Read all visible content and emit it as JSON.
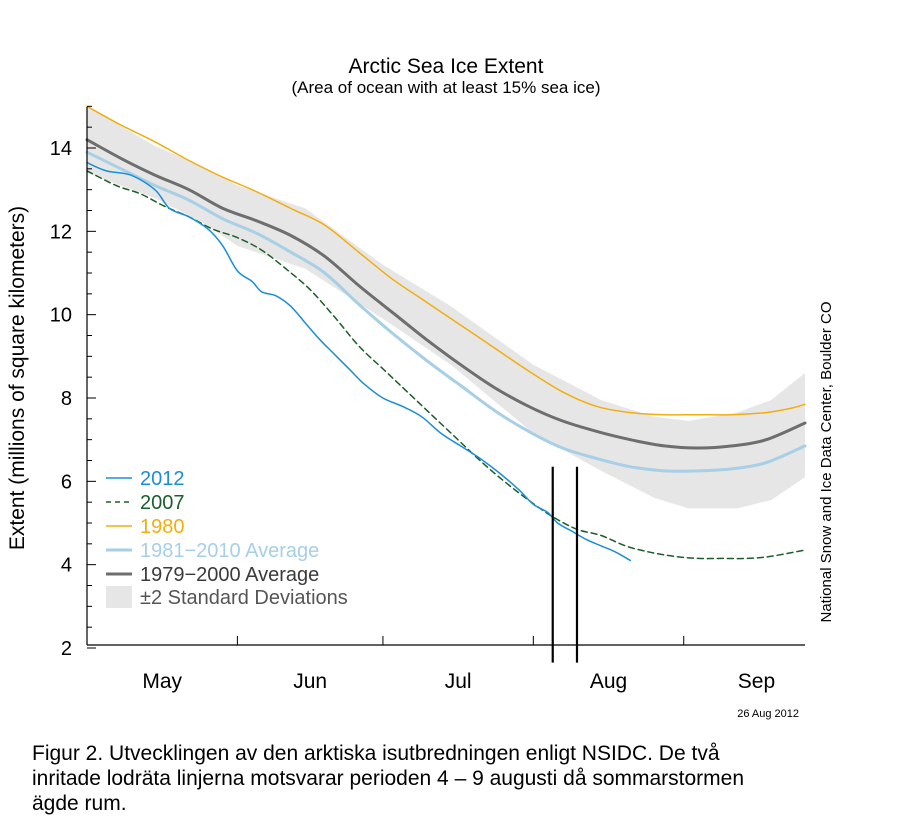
{
  "chart_data": {
    "type": "line",
    "title": "Arctic Sea Ice Extent",
    "subtitle": "(Area of ocean with at least 15% sea ice)",
    "xlabel": "",
    "ylabel": "Extent (millions of square kilometers)",
    "ylim": [
      2,
      15
    ],
    "yticks": [
      2,
      4,
      6,
      8,
      10,
      12,
      14
    ],
    "x_unit": "day_of_year",
    "xlim": [
      121,
      269
    ],
    "month_labels": [
      {
        "label": "May",
        "start": 121,
        "end": 152
      },
      {
        "label": "Jun",
        "start": 152,
        "end": 182
      },
      {
        "label": "Jul",
        "start": 182,
        "end": 213
      },
      {
        "label": "Aug",
        "start": 213,
        "end": 244
      },
      {
        "label": "Sep",
        "start": 244,
        "end": 274
      }
    ],
    "grid": false,
    "legend_placement": "lower-left",
    "band": {
      "name": "±2 Standard Deviations",
      "color": "#e6e6e6",
      "x": [
        121,
        135,
        145,
        152,
        166,
        182,
        196,
        213,
        227,
        238,
        245,
        255,
        262,
        269
      ],
      "upper": [
        15.0,
        14.05,
        13.55,
        13.1,
        12.55,
        11.2,
        10.2,
        8.8,
        7.95,
        7.55,
        7.45,
        7.65,
        7.95,
        8.6
      ],
      "lower": [
        13.4,
        12.8,
        12.2,
        11.65,
        11.1,
        9.9,
        8.8,
        7.15,
        6.25,
        5.6,
        5.35,
        5.35,
        5.55,
        6.1
      ]
    },
    "series": [
      {
        "name": "2012",
        "color": "#1a8fd6",
        "style": "solid",
        "width": 1.5,
        "x": [
          121,
          125,
          130,
          135,
          138,
          142,
          146,
          149,
          152,
          155,
          157,
          160,
          163,
          166,
          169,
          172,
          175,
          178,
          182,
          186,
          190,
          194,
          198,
          202,
          206,
          210,
          213,
          216,
          218,
          221,
          224,
          227,
          230,
          233
        ],
        "y": [
          13.65,
          13.45,
          13.35,
          13.0,
          12.55,
          12.35,
          12.05,
          11.65,
          11.05,
          10.8,
          10.55,
          10.45,
          10.2,
          9.8,
          9.4,
          9.05,
          8.7,
          8.35,
          8.0,
          7.8,
          7.55,
          7.15,
          6.85,
          6.55,
          6.2,
          5.8,
          5.45,
          5.25,
          5.0,
          4.8,
          4.6,
          4.45,
          4.3,
          4.1
        ]
      },
      {
        "name": "2007",
        "color": "#1b5e2b",
        "style": "dashed",
        "width": 1.5,
        "x": [
          121,
          127,
          132,
          137,
          142,
          147,
          152,
          157,
          162,
          167,
          172,
          177,
          182,
          187,
          192,
          197,
          202,
          207,
          212,
          217,
          222,
          227,
          232,
          237,
          242,
          247,
          252,
          257,
          262,
          269
        ],
        "y": [
          13.45,
          13.1,
          12.9,
          12.6,
          12.35,
          12.05,
          11.85,
          11.55,
          11.1,
          10.6,
          9.95,
          9.25,
          8.7,
          8.15,
          7.6,
          7.05,
          6.5,
          6.0,
          5.55,
          5.15,
          4.85,
          4.7,
          4.45,
          4.3,
          4.2,
          4.15,
          4.15,
          4.15,
          4.2,
          4.35
        ]
      },
      {
        "name": "1980",
        "color": "#f2ae0e",
        "style": "solid",
        "width": 1.5,
        "x": [
          121,
          128,
          135,
          142,
          149,
          156,
          163,
          170,
          177,
          184,
          191,
          198,
          205,
          212,
          219,
          226,
          233,
          240,
          247,
          254,
          261,
          266,
          269
        ],
        "y": [
          15.0,
          14.55,
          14.15,
          13.7,
          13.3,
          12.95,
          12.55,
          12.15,
          11.5,
          10.85,
          10.3,
          9.75,
          9.2,
          8.65,
          8.15,
          7.8,
          7.65,
          7.6,
          7.6,
          7.6,
          7.65,
          7.75,
          7.85
        ]
      },
      {
        "name": "1981−2010 Average",
        "color": "#a7cfe6",
        "style": "solid",
        "width": 3,
        "x": [
          121,
          128,
          135,
          142,
          149,
          156,
          163,
          170,
          177,
          184,
          191,
          198,
          205,
          212,
          219,
          226,
          233,
          240,
          247,
          254,
          261,
          269
        ],
        "y": [
          13.9,
          13.5,
          13.1,
          12.75,
          12.3,
          11.95,
          11.5,
          11.0,
          10.25,
          9.55,
          8.9,
          8.3,
          7.7,
          7.2,
          6.8,
          6.55,
          6.35,
          6.25,
          6.25,
          6.3,
          6.45,
          6.85
        ]
      },
      {
        "name": "1979−2000 Average",
        "color": "#6e6e6e",
        "style": "solid",
        "width": 3,
        "x": [
          121,
          128,
          135,
          142,
          149,
          156,
          163,
          170,
          177,
          184,
          191,
          198,
          205,
          212,
          219,
          226,
          233,
          240,
          247,
          254,
          261,
          269
        ],
        "y": [
          14.2,
          13.75,
          13.35,
          13.0,
          12.55,
          12.25,
          11.9,
          11.4,
          10.7,
          10.05,
          9.4,
          8.8,
          8.25,
          7.8,
          7.45,
          7.2,
          7.0,
          6.85,
          6.8,
          6.85,
          7.0,
          7.4
        ]
      }
    ],
    "vertical_lines": [
      {
        "x": 217,
        "y_from": 1.65,
        "y_to": 6.35,
        "color": "#000000"
      },
      {
        "x": 222,
        "y_from": 1.65,
        "y_to": 6.35,
        "color": "#000000"
      }
    ],
    "source_note": "National Snow and Ice Data Center, Boulder CO",
    "date_stamp": "26 Aug 2012"
  },
  "caption": {
    "line1": "Figur 2. Utvecklingen av den arktiska isutbredningen enligt NSIDC. De två",
    "line2": "inritade lodräta linjerna motsvarar perioden 4 – 9 augusti då sommarstormen",
    "line3": "ägde rum."
  }
}
